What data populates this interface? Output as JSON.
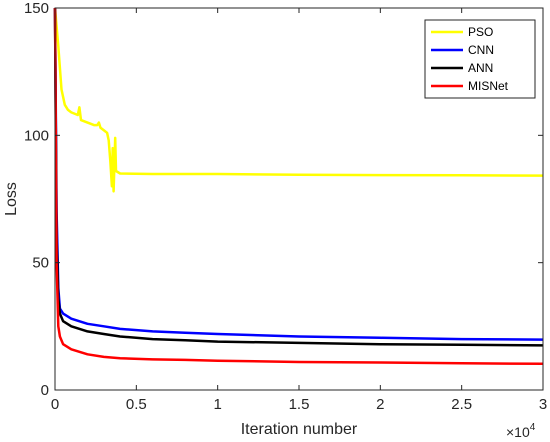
{
  "chart_data": {
    "type": "line",
    "title": "",
    "xlabel": "Iteration number",
    "ylabel": "Loss",
    "xlim": [
      0,
      30000
    ],
    "ylim": [
      0,
      150
    ],
    "x_ticks": [
      0,
      5000,
      10000,
      15000,
      20000,
      25000,
      30000
    ],
    "x_tick_labels": [
      "0",
      "0.5",
      "1",
      "1.5",
      "2",
      "2.5",
      "3"
    ],
    "x_exponent": {
      "base": "×10",
      "power": "4"
    },
    "y_ticks": [
      0,
      50,
      100,
      150
    ],
    "y_tick_labels": [
      "0",
      "50",
      "100",
      "150"
    ],
    "grid": false,
    "legend_position": "top-right",
    "series": [
      {
        "name": "PSO",
        "color": "#FFFF00",
        "points": [
          [
            0,
            150
          ],
          [
            200,
            135
          ],
          [
            400,
            118
          ],
          [
            600,
            112
          ],
          [
            800,
            110
          ],
          [
            1000,
            109
          ],
          [
            1400,
            108
          ],
          [
            1500,
            111
          ],
          [
            1600,
            106
          ],
          [
            2000,
            105
          ],
          [
            2400,
            104
          ],
          [
            2600,
            104
          ],
          [
            2700,
            105
          ],
          [
            2800,
            103
          ],
          [
            3000,
            102
          ],
          [
            3200,
            101
          ],
          [
            3300,
            98
          ],
          [
            3400,
            90
          ],
          [
            3500,
            80
          ],
          [
            3550,
            95
          ],
          [
            3600,
            78
          ],
          [
            3700,
            99
          ],
          [
            3750,
            86
          ],
          [
            4000,
            85
          ],
          [
            6000,
            84.8
          ],
          [
            10000,
            84.8
          ],
          [
            15000,
            84.5
          ],
          [
            20000,
            84.4
          ],
          [
            25000,
            84.3
          ],
          [
            30000,
            84.2
          ]
        ]
      },
      {
        "name": "CNN",
        "color": "#0000FF",
        "points": [
          [
            0,
            150
          ],
          [
            100,
            70
          ],
          [
            200,
            40
          ],
          [
            300,
            32
          ],
          [
            500,
            30
          ],
          [
            1000,
            28
          ],
          [
            2000,
            26
          ],
          [
            3000,
            25
          ],
          [
            4000,
            24
          ],
          [
            6000,
            23
          ],
          [
            8000,
            22.5
          ],
          [
            10000,
            22
          ],
          [
            15000,
            21
          ],
          [
            20000,
            20.5
          ],
          [
            25000,
            20
          ],
          [
            30000,
            19.8
          ]
        ]
      },
      {
        "name": "ANN",
        "color": "#000000",
        "points": [
          [
            0,
            150
          ],
          [
            100,
            60
          ],
          [
            200,
            36
          ],
          [
            300,
            30
          ],
          [
            500,
            27
          ],
          [
            1000,
            25
          ],
          [
            2000,
            23
          ],
          [
            3000,
            22
          ],
          [
            4000,
            21
          ],
          [
            6000,
            20
          ],
          [
            8000,
            19.5
          ],
          [
            10000,
            19
          ],
          [
            15000,
            18.5
          ],
          [
            20000,
            18
          ],
          [
            25000,
            17.8
          ],
          [
            30000,
            17.5
          ]
        ]
      },
      {
        "name": "MISNet",
        "color": "#FF0000",
        "points": [
          [
            0,
            150
          ],
          [
            100,
            50
          ],
          [
            200,
            25
          ],
          [
            300,
            21
          ],
          [
            500,
            18
          ],
          [
            1000,
            16
          ],
          [
            2000,
            14
          ],
          [
            3000,
            13
          ],
          [
            4000,
            12.5
          ],
          [
            6000,
            12
          ],
          [
            8000,
            11.8
          ],
          [
            10000,
            11.5
          ],
          [
            15000,
            11
          ],
          [
            20000,
            10.8
          ],
          [
            25000,
            10.5
          ],
          [
            30000,
            10.3
          ]
        ]
      }
    ]
  }
}
